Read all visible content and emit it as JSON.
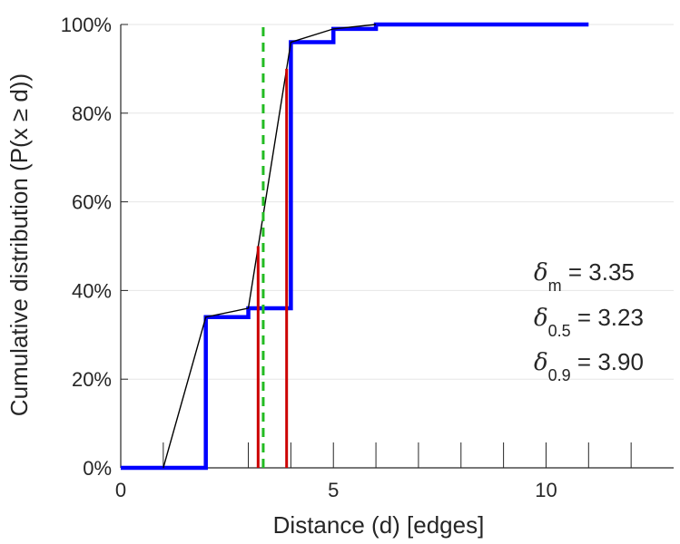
{
  "chart_data": {
    "type": "line",
    "xlabel": "Distance (d) [edges]",
    "ylabel": "Cumulative distribution (P(x ≥ d))",
    "xlim": [
      0,
      13
    ],
    "ylim": [
      0,
      1
    ],
    "x_ticks": [
      {
        "value": 0,
        "label": "0"
      },
      {
        "value": 5,
        "label": "5"
      },
      {
        "value": 10,
        "label": "10"
      }
    ],
    "x_minor_ticks": [
      1,
      2,
      3,
      4,
      6,
      7,
      8,
      9,
      11,
      12
    ],
    "y_ticks": [
      {
        "value": 0,
        "label": "0%"
      },
      {
        "value": 0.2,
        "label": "20%"
      },
      {
        "value": 0.4,
        "label": "40%"
      },
      {
        "value": 0.6,
        "label": "60%"
      },
      {
        "value": 0.8,
        "label": "80%"
      },
      {
        "value": 1.0,
        "label": "100%"
      }
    ],
    "grid": "horizontal",
    "series": [
      {
        "style": "step",
        "color": "#0000ff",
        "x": [
          0,
          2,
          3,
          4,
          5,
          6,
          11
        ],
        "y": [
          0,
          0.34,
          0.36,
          0.96,
          0.99,
          1.0,
          1.0
        ]
      },
      {
        "style": "line",
        "color": "#000000",
        "x": [
          1,
          2,
          3,
          4,
          5,
          6
        ],
        "y": [
          0,
          0.34,
          0.36,
          0.96,
          0.99,
          1.0
        ]
      }
    ],
    "vertical_lines": [
      {
        "x": 3.23,
        "y_top": 0.5,
        "color": "#cc0000",
        "dash": false
      },
      {
        "x": 3.9,
        "y_top": 0.9,
        "color": "#cc0000",
        "dash": false
      },
      {
        "x": 3.35,
        "y_top": 1.0,
        "color": "#22bb22",
        "dash": true
      }
    ],
    "annotations": [
      {
        "symbol": "δ",
        "subscript": "m",
        "text": " = 3.35"
      },
      {
        "symbol": "δ",
        "subscript": "0.5",
        "text": " = 3.23"
      },
      {
        "symbol": "δ",
        "subscript": "0.9",
        "text": " = 3.90"
      }
    ]
  }
}
